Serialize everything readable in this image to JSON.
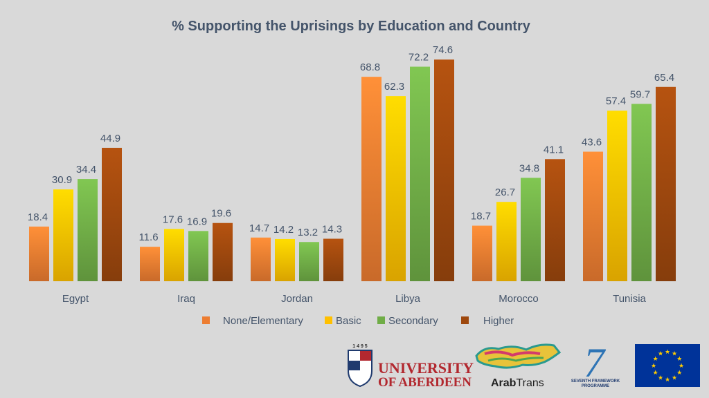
{
  "chart_data": {
    "type": "bar",
    "title": "% Supporting the Uprisings by Education and Country",
    "xlabel": "",
    "ylabel": "",
    "ylim": [
      0,
      80
    ],
    "grid": false,
    "legend_position": "bottom",
    "categories": [
      "Egypt",
      "Iraq",
      "Jordan",
      "Libya",
      "Morocco",
      "Tunisia"
    ],
    "series": [
      {
        "name": "None/Elementary",
        "color": "#ed7d31",
        "values": [
          18.4,
          11.6,
          14.7,
          68.8,
          18.7,
          43.6
        ]
      },
      {
        "name": "Basic",
        "color": "#ffc000",
        "values": [
          30.9,
          17.6,
          14.2,
          62.3,
          26.7,
          57.4
        ]
      },
      {
        "name": "Secondary",
        "color": "#70ad47",
        "values": [
          34.4,
          16.9,
          13.2,
          72.2,
          34.8,
          59.7
        ]
      },
      {
        "name": "Higher",
        "color": "#9e480e",
        "values": [
          44.9,
          19.6,
          14.3,
          74.6,
          41.1,
          65.4
        ]
      }
    ]
  },
  "logos": {
    "aberdeen": {
      "year": "1 4 9 5",
      "line1": "UNIVERSITY",
      "line2": "OF ABERDEEN"
    },
    "arabtrans": {
      "bold": "Arab",
      "rest": "Trans"
    },
    "fp7": {
      "number": "7",
      "line1": "SEVENTH FRAMEWORK",
      "line2": "PROGRAMME"
    },
    "eu": {
      "name": "eu-flag"
    }
  }
}
